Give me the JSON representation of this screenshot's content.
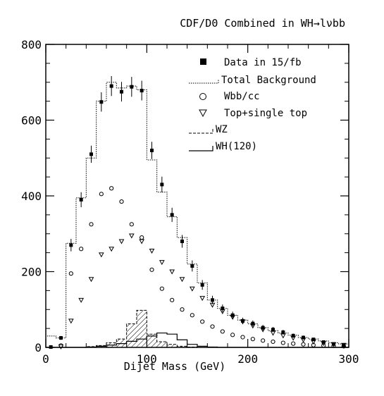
{
  "chart_data": {
    "type": "histogram",
    "title": "CDF/D0 Combined in WH→lνbb",
    "xlabel": "Dijet Mass (GeV)",
    "ylabel": "",
    "xlim": [
      0,
      300
    ],
    "ylim": [
      0,
      800
    ],
    "x_ticks": [
      "0",
      "100",
      "200",
      "300"
    ],
    "y_ticks": [
      "0",
      "200",
      "400",
      "600",
      "800"
    ],
    "legend_position": "top-right",
    "bin_width": 10,
    "bin_edges": [
      0,
      10,
      20,
      30,
      40,
      50,
      60,
      70,
      80,
      90,
      100,
      110,
      120,
      130,
      140,
      150,
      160,
      170,
      180,
      190,
      200,
      210,
      220,
      230,
      240,
      250,
      260,
      270,
      280,
      290,
      300
    ],
    "legend": {
      "data": "Data in 15/fb",
      "total": "Total Background",
      "wbb": "Wbb/cc",
      "top": "Top+single top",
      "wz": "WZ",
      "wh": "WH(120)"
    },
    "series": [
      {
        "name": "Data in 15/fb",
        "style": "filled-square-with-errorbars",
        "x": [
          5,
          15,
          25,
          35,
          45,
          55,
          65,
          75,
          85,
          95,
          105,
          115,
          125,
          135,
          145,
          155,
          165,
          175,
          185,
          195,
          205,
          215,
          225,
          235,
          245,
          255,
          265,
          275,
          285,
          295
        ],
        "y": [
          1,
          25,
          270,
          390,
          510,
          648,
          690,
          675,
          688,
          678,
          520,
          430,
          350,
          280,
          215,
          165,
          125,
          103,
          85,
          70,
          63,
          52,
          47,
          40,
          31,
          26,
          21,
          14,
          9,
          6
        ]
      },
      {
        "name": "Total Background",
        "style": "dotted-step",
        "values": [
          30,
          25,
          275,
          395,
          500,
          650,
          700,
          685,
          690,
          680,
          495,
          410,
          345,
          290,
          220,
          170,
          125,
          103,
          85,
          72,
          62,
          52,
          44,
          38,
          32,
          26,
          22,
          17,
          12,
          9
        ]
      },
      {
        "name": "Wbb/cc",
        "style": "open-circle",
        "x": [
          15,
          25,
          35,
          45,
          55,
          65,
          75,
          85,
          95,
          105,
          115,
          125,
          135,
          145,
          155,
          165,
          175,
          185,
          195,
          205,
          215,
          225,
          235,
          245,
          255,
          265,
          275,
          285,
          295
        ],
        "y": [
          5,
          195,
          260,
          325,
          405,
          420,
          385,
          325,
          290,
          205,
          155,
          125,
          100,
          85,
          68,
          55,
          42,
          33,
          27,
          22,
          18,
          15,
          12,
          10,
          8,
          6,
          5,
          4,
          3
        ]
      },
      {
        "name": "Top+single top",
        "style": "open-triangle-down",
        "x": [
          15,
          25,
          35,
          45,
          55,
          65,
          75,
          85,
          95,
          105,
          115,
          125,
          135,
          145,
          155,
          165,
          175,
          185,
          195,
          205,
          215,
          225,
          235,
          245,
          255,
          265,
          275,
          285,
          295
        ],
        "y": [
          2,
          70,
          125,
          180,
          245,
          260,
          280,
          295,
          280,
          255,
          225,
          200,
          180,
          155,
          130,
          112,
          95,
          80,
          68,
          57,
          47,
          38,
          31,
          25,
          20,
          15,
          11,
          8,
          6
        ]
      },
      {
        "name": "WZ",
        "style": "dashed-step-hatched",
        "values": [
          0,
          0,
          0,
          0,
          2,
          5,
          12,
          22,
          62,
          98,
          35,
          15,
          8,
          3,
          1,
          0,
          0,
          0,
          0,
          0,
          0,
          0,
          0,
          0,
          0,
          0,
          0,
          0,
          0,
          0
        ]
      },
      {
        "name": "WH(120)",
        "style": "solid-step",
        "values": [
          0,
          0,
          0,
          0,
          1,
          3,
          6,
          10,
          16,
          22,
          30,
          38,
          35,
          20,
          8,
          3,
          1,
          0,
          0,
          0,
          0,
          0,
          0,
          0,
          0,
          0,
          0,
          0,
          0,
          0
        ]
      }
    ]
  }
}
